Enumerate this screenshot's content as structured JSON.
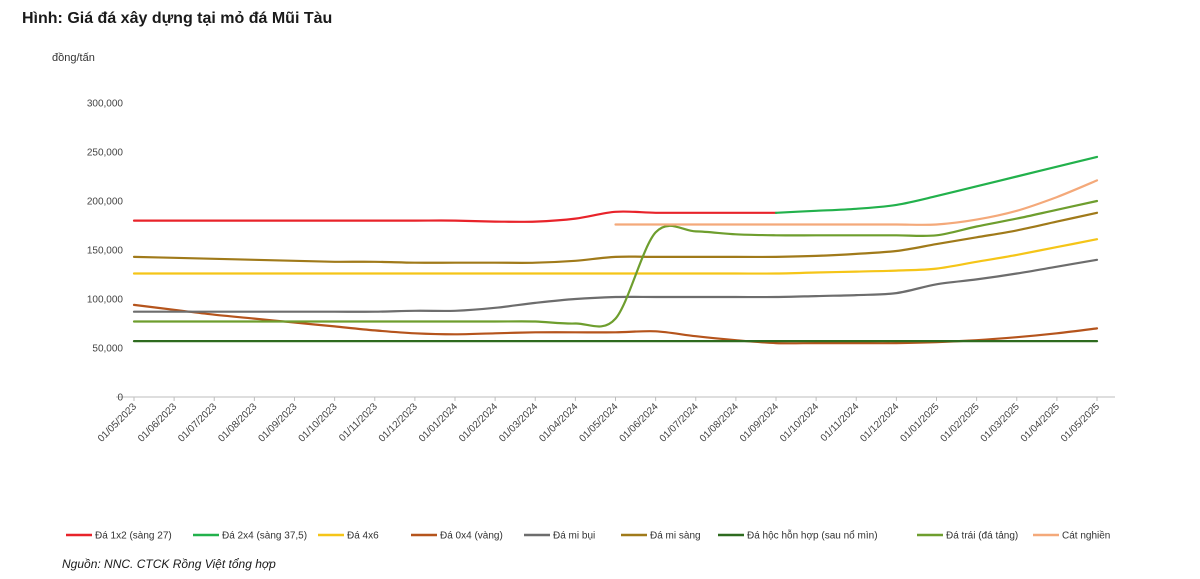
{
  "title": "Hình: Giá đá xây dựng tại mỏ đá Mũi Tàu",
  "unit_label": "đồng/tấn",
  "source": "Nguồn: NNC.  CTCK Rồng Việt tổng hợp",
  "chart_data": {
    "type": "line",
    "title": "Hình: Giá đá xây dựng tại mỏ đá Mũi Tàu",
    "ylabel": "đồng/tấn",
    "xlabel": "",
    "ylim": [
      0,
      300000
    ],
    "yticks": [
      0,
      50000,
      100000,
      150000,
      200000,
      250000,
      300000
    ],
    "ytick_labels": [
      "0",
      "50,000",
      "100,000",
      "150,000",
      "200,000",
      "250,000",
      "300,000"
    ],
    "grid": false,
    "legend_position": "bottom",
    "categories": [
      "01/05/2023",
      "01/06/2023",
      "01/07/2023",
      "01/08/2023",
      "01/09/2023",
      "01/10/2023",
      "01/11/2023",
      "01/12/2023",
      "01/01/2024",
      "01/02/2024",
      "01/03/2024",
      "01/04/2024",
      "01/05/2024",
      "01/06/2024",
      "01/07/2024",
      "01/08/2024",
      "01/09/2024",
      "01/10/2024",
      "01/11/2024",
      "01/12/2024",
      "01/01/2025",
      "01/02/2025",
      "01/03/2025",
      "01/04/2025",
      "01/05/2025"
    ],
    "series": [
      {
        "name": "Đá 1x2 (sàng 27)",
        "color": "#e8232a",
        "values": [
          180000,
          180000,
          180000,
          180000,
          180000,
          180000,
          180000,
          180000,
          180000,
          179000,
          179000,
          182000,
          189000,
          188000,
          188000,
          188000,
          188000,
          null,
          null,
          null,
          null,
          null,
          null,
          null,
          null
        ]
      },
      {
        "name": "Đá 2x4 (sàng 37,5)",
        "color": "#22b14c",
        "values": [
          null,
          null,
          null,
          null,
          null,
          null,
          null,
          null,
          null,
          null,
          null,
          null,
          null,
          null,
          null,
          null,
          188000,
          190000,
          192000,
          196000,
          205000,
          215000,
          225000,
          235000,
          245000
        ]
      },
      {
        "name": "Đá 4x6",
        "color": "#f5c518",
        "values": [
          126000,
          126000,
          126000,
          126000,
          126000,
          126000,
          126000,
          126000,
          126000,
          126000,
          126000,
          126000,
          126000,
          126000,
          126000,
          126000,
          126000,
          127000,
          128000,
          129000,
          131000,
          138000,
          145000,
          153000,
          161000
        ]
      },
      {
        "name": "Đá 0x4 (vàng)",
        "color": "#b5541c",
        "values": [
          94000,
          89000,
          84000,
          80000,
          76000,
          72000,
          68000,
          65000,
          64000,
          65000,
          66000,
          66000,
          66000,
          67000,
          62000,
          58000,
          55000,
          55000,
          55000,
          55000,
          56000,
          58000,
          61000,
          65000,
          70000
        ]
      },
      {
        "name": "Đá mi bụi",
        "color": "#6d6d6d",
        "values": [
          87000,
          87000,
          87000,
          87000,
          87000,
          87000,
          87000,
          88000,
          88000,
          91000,
          96000,
          100000,
          102000,
          102000,
          102000,
          102000,
          102000,
          103000,
          104000,
          106000,
          115000,
          120000,
          126000,
          133000,
          140000
        ]
      },
      {
        "name": "Đá mi sàng",
        "color": "#a07a1a",
        "values": [
          143000,
          142000,
          141000,
          140000,
          139000,
          138000,
          138000,
          137000,
          137000,
          137000,
          137000,
          139000,
          143000,
          143000,
          143000,
          143000,
          143000,
          144000,
          146000,
          149000,
          156000,
          163000,
          170000,
          179000,
          188000
        ]
      },
      {
        "name": "Đá hộc hỗn hợp (sau nổ mìn)",
        "color": "#2e6b1f",
        "values": [
          57000,
          57000,
          57000,
          57000,
          57000,
          57000,
          57000,
          57000,
          57000,
          57000,
          57000,
          57000,
          57000,
          57000,
          57000,
          57000,
          57000,
          57000,
          57000,
          57000,
          57000,
          57000,
          57000,
          57000,
          57000
        ]
      },
      {
        "name": "Đá trái (đá tảng)",
        "color": "#6e9e2e",
        "values": [
          77000,
          77000,
          77000,
          77000,
          77000,
          77000,
          77000,
          77000,
          77000,
          77000,
          77000,
          75000,
          80000,
          168000,
          169000,
          166000,
          165000,
          165000,
          165000,
          165000,
          165000,
          174000,
          182000,
          191000,
          200000
        ]
      },
      {
        "name": "Cát nghiền",
        "color": "#f4a97a",
        "values": [
          null,
          null,
          null,
          null,
          null,
          null,
          null,
          null,
          null,
          null,
          null,
          null,
          176000,
          176000,
          176000,
          176000,
          176000,
          176000,
          176000,
          176000,
          176000,
          181000,
          190000,
          204000,
          221000
        ]
      }
    ]
  }
}
